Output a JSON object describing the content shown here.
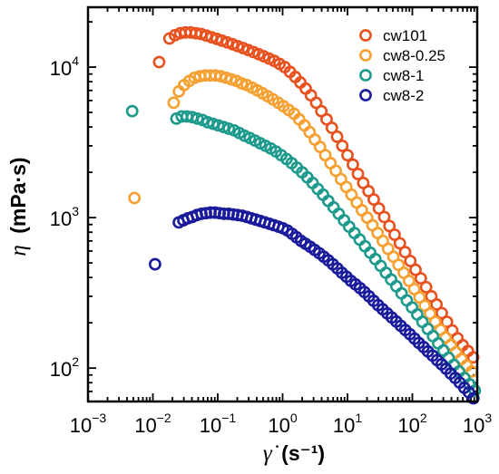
{
  "chart_data": {
    "type": "scatter",
    "x_scale": "log",
    "y_scale": "log",
    "xlim": [
      0.001,
      1000
    ],
    "ylim": [
      60,
      25000
    ],
    "xlabel": "s⁻¹",
    "ylabel": "mPa·s",
    "xlabel_symbol": "γ̇",
    "ylabel_symbol": "η",
    "x_ticks": [
      {
        "base": "10",
        "exp": "-3",
        "value": 0.001
      },
      {
        "base": "10",
        "exp": "-2",
        "value": 0.01
      },
      {
        "base": "10",
        "exp": "-1",
        "value": 0.1
      },
      {
        "base": "10",
        "exp": "0",
        "value": 1
      },
      {
        "base": "10",
        "exp": "1",
        "value": 10
      },
      {
        "base": "10",
        "exp": "2",
        "value": 100
      },
      {
        "base": "10",
        "exp": "3",
        "value": 1000
      }
    ],
    "y_ticks": [
      {
        "base": "10",
        "exp": "2",
        "value": 100
      },
      {
        "base": "10",
        "exp": "3",
        "value": 1000
      },
      {
        "base": "10",
        "exp": "4",
        "value": 10000
      }
    ],
    "legend_position": "top-right",
    "grid": false,
    "series": [
      {
        "name": "cw101",
        "color": "#E8501E",
        "x": [
          0.0125,
          0.018,
          0.0219,
          0.0264,
          0.0318,
          0.0383,
          0.0461,
          0.0554,
          0.0667,
          0.0803,
          0.0967,
          0.116,
          0.14,
          0.169,
          0.203,
          0.245,
          0.294,
          0.354,
          0.427,
          0.513,
          0.618,
          0.744,
          0.896,
          1.08,
          1.3,
          1.57,
          1.88,
          2.27,
          2.73,
          3.29,
          3.96,
          4.77,
          5.74,
          6.91,
          8.32,
          10.0,
          12.1,
          14.5,
          17.5,
          21.1,
          25.4,
          30.5,
          36.8,
          44.3,
          53.3,
          64.2,
          77.3,
          93.1,
          112,
          135,
          163,
          196,
          236,
          284,
          342,
          412,
          496,
          597,
          719,
          866
        ],
        "y": [
          10800,
          15500,
          16300,
          16800,
          17000,
          17000,
          16800,
          16600,
          16200,
          15800,
          15400,
          15000,
          14600,
          14200,
          13800,
          13400,
          13000,
          12600,
          12200,
          11800,
          11400,
          11000,
          10500,
          10000,
          9300,
          8600,
          7900,
          7200,
          6500,
          5800,
          5100,
          4500,
          3950,
          3450,
          3000,
          2600,
          2250,
          1950,
          1700,
          1500,
          1320,
          1150,
          1010,
          880,
          770,
          675,
          590,
          515,
          450,
          395,
          345,
          300,
          265,
          232,
          203,
          178,
          158,
          142,
          130,
          118
        ]
      },
      {
        "name": "cw8-0.25",
        "color": "#F5A030",
        "x": [
          0.0052,
          0.0209,
          0.0252,
          0.0303,
          0.0365,
          0.0439,
          0.0529,
          0.0637,
          0.0767,
          0.0923,
          0.111,
          0.134,
          0.161,
          0.194,
          0.234,
          0.281,
          0.339,
          0.408,
          0.491,
          0.591,
          0.712,
          0.857,
          1.03,
          1.24,
          1.5,
          1.8,
          2.17,
          2.61,
          3.14,
          3.78,
          4.55,
          5.48,
          6.6,
          7.95,
          9.57,
          11.5,
          13.9,
          16.7,
          20.1,
          24.2,
          29.2,
          35.1,
          42.3,
          50.9,
          61.3,
          73.8,
          88.9,
          107,
          129,
          155,
          187,
          225,
          271,
          326,
          393,
          473,
          570,
          686,
          826
        ],
        "y": [
          1350,
          5800,
          6900,
          7600,
          8100,
          8500,
          8700,
          8800,
          8800,
          8800,
          8700,
          8500,
          8300,
          8100,
          7800,
          7600,
          7300,
          7000,
          6700,
          6400,
          6100,
          5800,
          5500,
          5200,
          4900,
          4500,
          4100,
          3700,
          3300,
          2950,
          2600,
          2300,
          2050,
          1800,
          1600,
          1420,
          1260,
          1120,
          1000,
          890,
          790,
          700,
          620,
          550,
          485,
          430,
          380,
          335,
          295,
          260,
          230,
          203,
          180,
          160,
          143,
          128,
          115,
          104,
          95
        ]
      },
      {
        "name": "cw8-1",
        "color": "#1E9A8C",
        "x": [
          0.0048,
          0.0231,
          0.0279,
          0.0335,
          0.0404,
          0.0486,
          0.0586,
          0.0705,
          0.0849,
          0.102,
          0.123,
          0.148,
          0.179,
          0.215,
          0.259,
          0.312,
          0.376,
          0.452,
          0.545,
          0.656,
          0.79,
          0.951,
          1.15,
          1.38,
          1.66,
          2.0,
          2.41,
          2.9,
          3.49,
          4.2,
          5.06,
          6.1,
          7.34,
          8.84,
          10.6,
          12.8,
          15.4,
          18.6,
          22.4,
          26.9,
          32.4,
          39.1,
          47.0,
          56.6,
          68.2,
          82.1,
          98.9,
          119,
          143,
          173,
          208,
          250,
          301,
          363,
          437,
          526,
          634,
          763,
          919
        ],
        "y": [
          5100,
          4550,
          4700,
          4700,
          4650,
          4550,
          4450,
          4300,
          4200,
          4100,
          4000,
          3900,
          3800,
          3650,
          3500,
          3380,
          3250,
          3120,
          3000,
          2880,
          2750,
          2600,
          2450,
          2300,
          2150,
          2000,
          1850,
          1700,
          1550,
          1420,
          1290,
          1170,
          1060,
          960,
          870,
          790,
          715,
          645,
          585,
          530,
          478,
          430,
          388,
          350,
          314,
          282,
          253,
          227,
          203,
          182,
          163,
          146,
          131,
          117,
          105,
          95,
          86,
          78,
          71
        ]
      },
      {
        "name": "cw8-2",
        "color": "#1A1A9C",
        "x": [
          0.0108,
          0.0251,
          0.0295,
          0.0346,
          0.0406,
          0.0477,
          0.056,
          0.0658,
          0.0773,
          0.0908,
          0.107,
          0.125,
          0.147,
          0.173,
          0.203,
          0.238,
          0.28,
          0.329,
          0.386,
          0.453,
          0.532,
          0.625,
          0.734,
          0.862,
          1.01,
          1.19,
          1.4,
          1.64,
          1.93,
          2.26,
          2.66,
          3.12,
          3.67,
          4.31,
          5.06,
          5.94,
          6.98,
          8.2,
          9.63,
          11.3,
          13.3,
          15.6,
          18.3,
          21.5,
          25.3,
          29.7,
          34.9,
          41.0,
          48.1,
          56.5,
          66.4,
          78.0,
          91.6,
          108,
          126,
          149,
          174,
          205,
          241,
          283,
          332,
          390,
          458,
          538,
          632,
          743,
          872
        ],
        "y": [
          490,
          930,
          960,
          990,
          1010,
          1040,
          1060,
          1070,
          1080,
          1080,
          1070,
          1060,
          1060,
          1050,
          1040,
          1030,
          1010,
          990,
          970,
          950,
          930,
          910,
          890,
          870,
          850,
          820,
          780,
          740,
          700,
          670,
          640,
          610,
          580,
          550,
          520,
          490,
          460,
          430,
          405,
          380,
          360,
          340,
          320,
          300,
          280,
          262,
          246,
          231,
          217,
          204,
          191,
          179,
          168,
          157,
          147,
          138,
          129,
          121,
          113,
          106,
          99,
          92,
          86,
          80,
          74,
          69,
          63
        ]
      }
    ]
  }
}
